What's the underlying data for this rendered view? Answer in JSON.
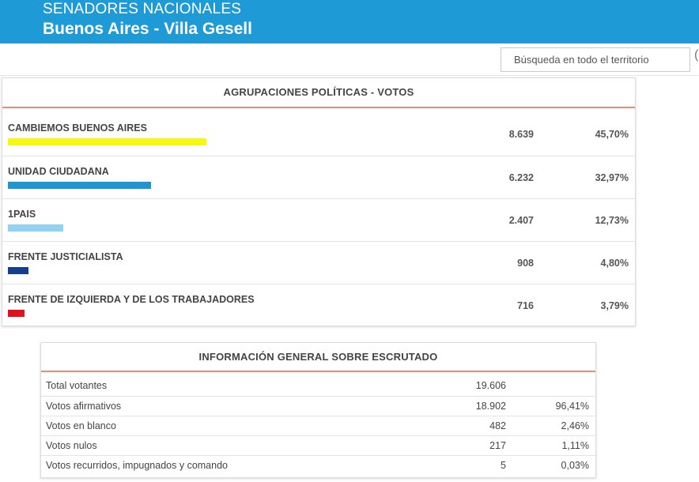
{
  "header": {
    "title": "SENADORES NACIONALES",
    "subtitle": "Buenos Aires - Villa Gesell"
  },
  "search": {
    "placeholder": "Búsqueda en todo el territorio"
  },
  "parties_panel": {
    "title": "AGRUPACIONES POLÍTICAS - VOTOS",
    "rows": [
      {
        "name": "CAMBIEMOS BUENOS AIRES",
        "votes": "8.639",
        "pct": "45,70%",
        "pct_value": 45.7,
        "color": "#f7f711"
      },
      {
        "name": "UNIDAD CIUDADANA",
        "votes": "6.232",
        "pct": "32,97%",
        "pct_value": 32.97,
        "color": "#2095cf"
      },
      {
        "name": "1PAIS",
        "votes": "2.407",
        "pct": "12,73%",
        "pct_value": 12.73,
        "color": "#92d2f5"
      },
      {
        "name": "FRENTE JUSTICIALISTA",
        "votes": "908",
        "pct": "4,80%",
        "pct_value": 4.8,
        "color": "#153f8c"
      },
      {
        "name": "FRENTE DE IZQUIERDA Y DE LOS TRABAJADORES",
        "votes": "716",
        "pct": "3,79%",
        "pct_value": 3.79,
        "color": "#e0121b"
      }
    ]
  },
  "info_panel": {
    "title": "INFORMACIÓN GENERAL SOBRE ESCRUTADO",
    "rows": [
      {
        "label": "Total votantes",
        "value": "19.606",
        "pct": ""
      },
      {
        "label": "Votos afirmativos",
        "value": "18.902",
        "pct": "96,41%"
      },
      {
        "label": "Votos en blanco",
        "value": "482",
        "pct": "2,46%"
      },
      {
        "label": "Votos nulos",
        "value": "217",
        "pct": "1,11%"
      },
      {
        "label": "Votos recurridos, impugnados y comando",
        "value": "5",
        "pct": "0,03%"
      }
    ]
  }
}
